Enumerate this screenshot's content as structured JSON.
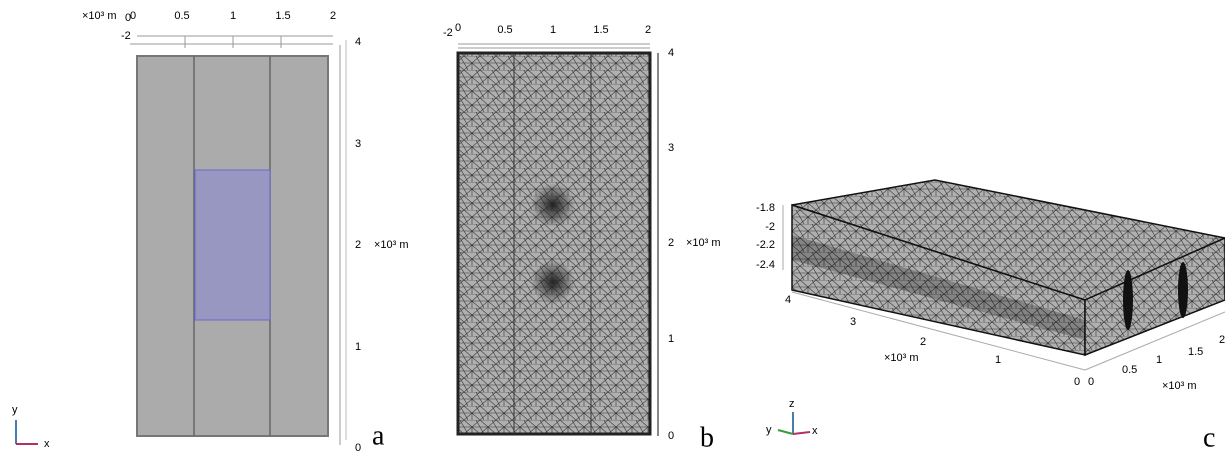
{
  "panel_a": {
    "scale_unit": "×10³ m",
    "top_ticks": [
      "0",
      "0.5",
      "1",
      "1.5",
      "2"
    ],
    "top_extra": [
      "0",
      "-2"
    ],
    "right_ticks": [
      "4",
      "3",
      "2",
      "1",
      "0"
    ],
    "right_unit": "×10³ m",
    "label": "a",
    "triad": [
      "y",
      "x"
    ]
  },
  "panel_b": {
    "top_ticks": [
      "-2",
      "0",
      "0.5",
      "1",
      "1.5",
      "2"
    ],
    "right_ticks": [
      "4",
      "3",
      "2",
      "1",
      "0"
    ],
    "right_unit": "×10³ m",
    "label": "b"
  },
  "panel_c": {
    "z_ticks": [
      "-1.8",
      "-2",
      "-2.2",
      "-2.4"
    ],
    "y_ticks": [
      "4",
      "3",
      "2",
      "1",
      "0"
    ],
    "y_unit": "×10³ m",
    "x_ticks": [
      "0",
      "0.5",
      "1",
      "1.5",
      "2"
    ],
    "x_unit": "×10³ m",
    "label": "c",
    "triad": [
      "z",
      "y",
      "x"
    ]
  }
}
